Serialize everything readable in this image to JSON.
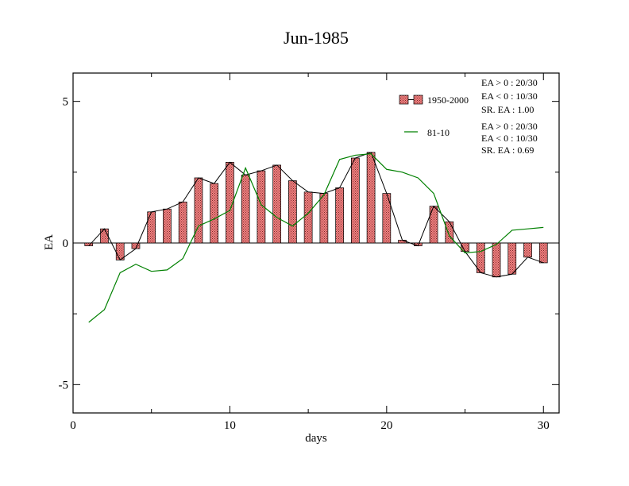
{
  "chart_data": {
    "type": "bar",
    "title": "Jun-1985",
    "xlabel": "days",
    "ylabel": "EA",
    "xlim": [
      0,
      31
    ],
    "ylim": [
      -6,
      6
    ],
    "x_ticks": [
      0,
      10,
      20,
      30
    ],
    "y_ticks": [
      -5,
      0,
      5
    ],
    "x_tick_labels": [
      "0",
      "10",
      "20",
      "30"
    ],
    "y_tick_labels": [
      "-5",
      "0",
      "5"
    ],
    "grid": false,
    "legend_position": "top-right",
    "x": [
      1,
      2,
      3,
      4,
      5,
      6,
      7,
      8,
      9,
      10,
      11,
      12,
      13,
      14,
      15,
      16,
      17,
      18,
      19,
      20,
      21,
      22,
      23,
      24,
      25,
      26,
      27,
      28,
      29,
      30
    ],
    "series": [
      {
        "name": "1950-2000",
        "kind": "bar",
        "fill": "#f08080",
        "values": [
          -0.1,
          0.5,
          -0.6,
          -0.2,
          1.1,
          1.2,
          1.45,
          2.3,
          2.1,
          2.85,
          2.4,
          2.55,
          2.75,
          2.2,
          1.8,
          1.75,
          1.95,
          3.0,
          3.2,
          1.75,
          0.1,
          -0.1,
          1.3,
          0.75,
          -0.3,
          -1.05,
          -1.2,
          -1.1,
          -0.5,
          -0.7
        ]
      },
      {
        "name": "81-10",
        "kind": "line",
        "color": "#008000",
        "values": [
          -2.8,
          -2.35,
          -1.05,
          -0.75,
          -1.0,
          -0.95,
          -0.55,
          0.6,
          0.85,
          1.15,
          2.65,
          1.35,
          0.9,
          0.6,
          1.05,
          1.7,
          2.95,
          3.1,
          3.15,
          2.6,
          2.5,
          2.3,
          1.75,
          0.25,
          -0.35,
          -0.3,
          -0.05,
          0.45,
          0.5,
          0.55
        ]
      }
    ],
    "legend": [
      {
        "label": "1950-2000",
        "stats": [
          "EA > 0 : 20/30",
          "EA < 0 : 10/30",
          "SR. EA :  1.00"
        ]
      },
      {
        "label": "81-10",
        "stats": [
          "EA > 0 : 20/30",
          "EA < 0 : 10/30",
          "SR. EA :  0.69"
        ]
      }
    ]
  }
}
